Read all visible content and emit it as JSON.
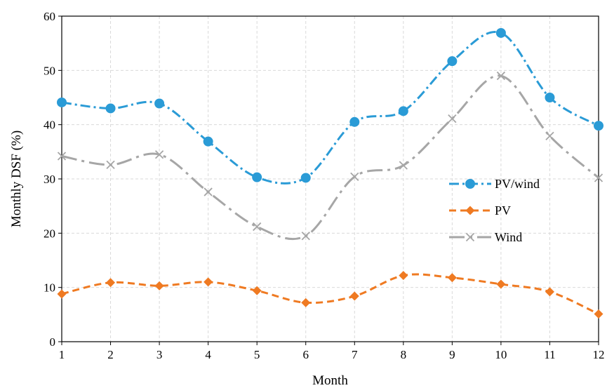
{
  "chart_data": {
    "type": "line",
    "title": "",
    "xlabel": "Month",
    "ylabel": "Monthly DSF (%)",
    "x": [
      1,
      2,
      3,
      4,
      5,
      6,
      7,
      8,
      9,
      10,
      11,
      12
    ],
    "xlim": [
      1,
      12
    ],
    "ylim": [
      0,
      60
    ],
    "yticks": [
      0,
      10,
      20,
      30,
      40,
      50,
      60
    ],
    "grid": true,
    "legend": "right",
    "series": [
      {
        "name": "PV/wind",
        "color": "#2a9bd6",
        "marker": "circle",
        "dash": "dashdot",
        "values": [
          44.1,
          43.0,
          43.9,
          36.9,
          30.3,
          30.2,
          40.5,
          42.5,
          51.7,
          56.9,
          45.0,
          39.8
        ]
      },
      {
        "name": "PV",
        "color": "#ef7a22",
        "marker": "diamond",
        "dash": "dash",
        "values": [
          8.8,
          10.9,
          10.3,
          11.0,
          9.4,
          7.2,
          8.4,
          12.2,
          11.8,
          10.6,
          9.2,
          5.1
        ]
      },
      {
        "name": "Wind",
        "color": "#a6a6a6",
        "marker": "x",
        "dash": "longdashdot",
        "values": [
          34.2,
          32.6,
          34.5,
          27.6,
          21.2,
          19.5,
          30.4,
          32.5,
          41.1,
          49.0,
          37.9,
          30.2
        ]
      }
    ]
  }
}
